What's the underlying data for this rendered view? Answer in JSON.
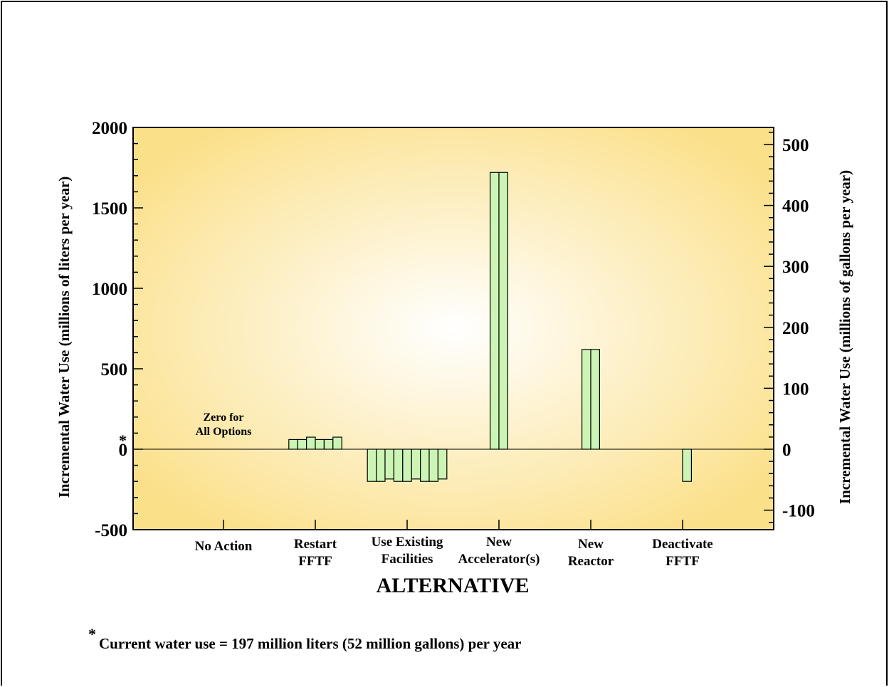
{
  "chart_data": {
    "type": "bar",
    "xlabel": "ALTERNATIVE",
    "ylabel_left": "Incremental Water Use (millions of liters per year)",
    "ylabel_right": "Incremental Water Use (millions of gallons per year)",
    "ylim": [
      -500,
      2000
    ],
    "y2lim": [
      -132,
      528
    ],
    "yticks": [
      "2000",
      "1500",
      "1000",
      "500",
      "0",
      "-500"
    ],
    "yticks_right": [
      "500",
      "400",
      "300",
      "200",
      "100",
      "0",
      "-100"
    ],
    "zero_marker": "*",
    "bar_color": "#ccf5b5",
    "background_colors": {
      "center": "#ffffff",
      "edge": "#fbe08a"
    },
    "categories": [
      {
        "label": [
          "No Action"
        ],
        "values": [
          0,
          0,
          0,
          0,
          0,
          0,
          0,
          0
        ]
      },
      {
        "label": [
          "Restart",
          "FFTF"
        ],
        "values": [
          0,
          60,
          60,
          75,
          60,
          60,
          75,
          0
        ]
      },
      {
        "label": [
          "Use Existing",
          "Facilities"
        ],
        "values": [
          -200,
          -200,
          -185,
          -200,
          -200,
          -185,
          -200,
          -200,
          -185
        ]
      },
      {
        "label": [
          "New",
          "Accelerator(s)"
        ],
        "values": [
          0,
          0,
          0,
          1720,
          1720,
          0,
          0,
          0
        ]
      },
      {
        "label": [
          "New",
          "Reactor"
        ],
        "values": [
          0,
          0,
          0,
          620,
          620,
          0,
          0,
          0
        ]
      },
      {
        "label": [
          "Deactivate",
          "FFTF"
        ],
        "values": [
          0,
          0,
          0,
          0,
          -200,
          0,
          0,
          0
        ]
      }
    ],
    "annotations": [
      {
        "text": [
          "Zero for",
          "All Options"
        ],
        "category": "No Action"
      }
    ]
  },
  "footnote": {
    "marker": "*",
    "text": "Current water use = 197 million liters (52 million gallons) per year"
  }
}
